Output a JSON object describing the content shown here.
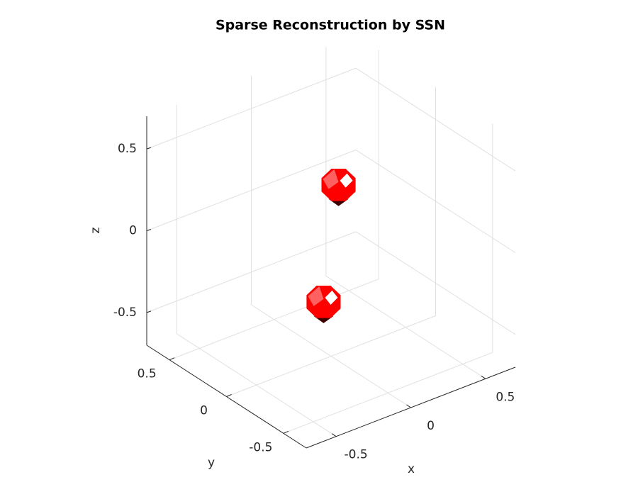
{
  "chart_data": {
    "type": "scatter3d",
    "title": "Sparse Reconstruction by SSN",
    "xlabel": "x",
    "ylabel": "y",
    "zlabel": "z",
    "xlim": [
      -0.7,
      0.7
    ],
    "ylim": [
      -0.7,
      0.7
    ],
    "zlim": [
      -0.7,
      0.7
    ],
    "xticks": [
      -0.5,
      0,
      0.5
    ],
    "yticks": [
      -0.5,
      0,
      0.5
    ],
    "zticks": [
      -0.5,
      0,
      0.5
    ],
    "grid": true,
    "series": [
      {
        "color": "#ff0000",
        "x": [
          0.05,
          -0.05
        ],
        "y": [
          0,
          0
        ],
        "z": [
          0.33,
          -0.35
        ]
      }
    ]
  }
}
